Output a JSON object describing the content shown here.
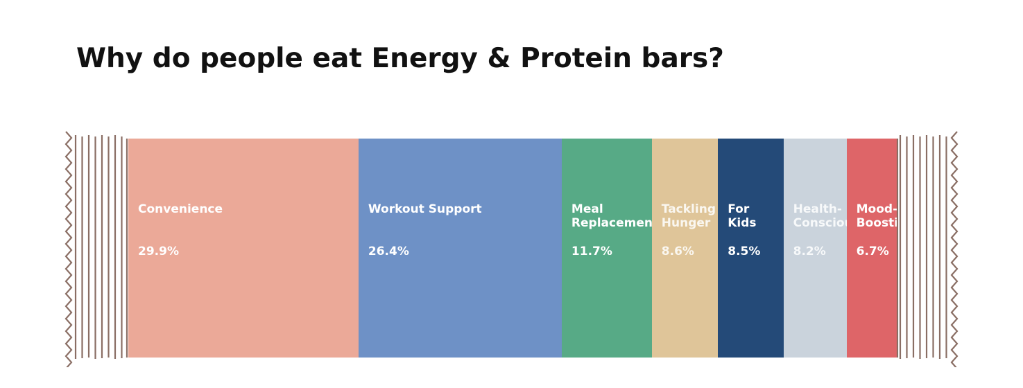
{
  "chart_data": {
    "type": "bar",
    "title": "Why do people eat Energy & Protein bars?",
    "categories": [
      "Convenience",
      "Workout Support",
      "Meal Replacement",
      "Tackling Hunger",
      "For Kids",
      "Health-Conscious",
      "Mood-Boosting"
    ],
    "values": [
      29.9,
      26.4,
      11.7,
      8.6,
      8.5,
      8.2,
      6.7
    ],
    "value_labels": [
      "29.9%",
      "26.4%",
      "11.7%",
      "8.6%",
      "8.5%",
      "8.2%",
      "6.7%"
    ],
    "colors": [
      "#eba998",
      "#6e91c6",
      "#57aa86",
      "#dfc599",
      "#244a78",
      "#cad3dc",
      "#de6568"
    ]
  }
}
